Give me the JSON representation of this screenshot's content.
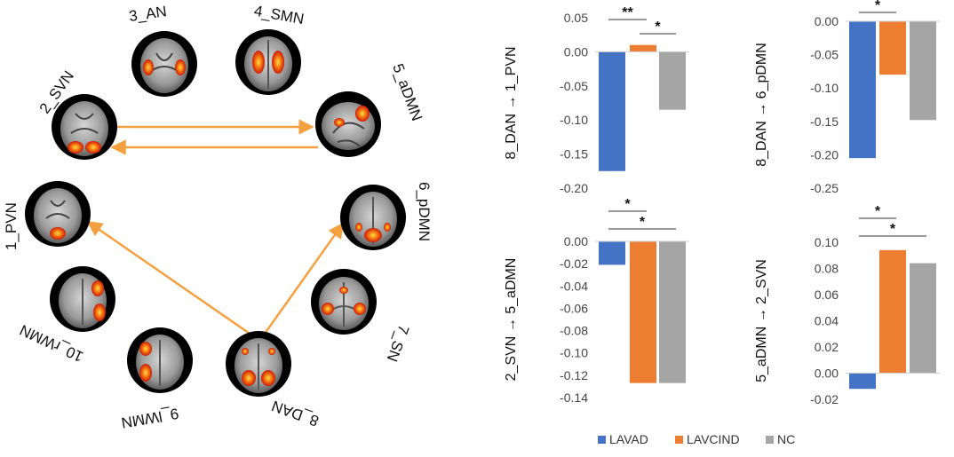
{
  "colors": {
    "LAVAD": "#4472c4",
    "LAVCIND": "#ed7d31",
    "NC": "#a5a5a5",
    "arrow": "#f4a040",
    "activation": "#e8340f"
  },
  "networks": [
    {
      "id": "1_PVN",
      "label": "1_PVN"
    },
    {
      "id": "2_SVN",
      "label": "2_SVN"
    },
    {
      "id": "3_AN",
      "label": "3_AN"
    },
    {
      "id": "4_SMN",
      "label": "4_SMN"
    },
    {
      "id": "5_aDMN",
      "label": "5_aDMN"
    },
    {
      "id": "6_pDMN",
      "label": "6_pDMN"
    },
    {
      "id": "7_SN",
      "label": "7_SN"
    },
    {
      "id": "8_DAN",
      "label": "8_DAN"
    },
    {
      "id": "9_lWMN",
      "label": "9_lWMN"
    },
    {
      "id": "10_rWMN",
      "label": "10_rWMN"
    }
  ],
  "connections": [
    {
      "from": "2_SVN",
      "to": "5_aDMN"
    },
    {
      "from": "5_aDMN",
      "to": "2_SVN"
    },
    {
      "from": "8_DAN",
      "to": "1_PVN"
    },
    {
      "from": "8_DAN",
      "to": "6_pDMN"
    }
  ],
  "legend": [
    "LAVAD",
    "LAVCIND",
    "NC"
  ],
  "chart_data": [
    {
      "type": "bar",
      "ylabel": "8_DAN → 1_PVN",
      "categories": [
        "LAVAD",
        "LAVCIND",
        "NC"
      ],
      "values": [
        -0.175,
        0.01,
        -0.085
      ],
      "ylim": [
        -0.2,
        0.05
      ],
      "ticks": [
        "0.05",
        "0.00",
        "-0.05",
        "-0.10",
        "-0.15",
        "-0.20"
      ],
      "tick_values": [
        0.05,
        0.0,
        -0.05,
        -0.1,
        -0.15,
        -0.2
      ],
      "significance": [
        {
          "pair": [
            "LAVAD",
            "LAVCIND"
          ],
          "label": "**"
        },
        {
          "pair": [
            "LAVCIND",
            "NC"
          ],
          "label": "*"
        }
      ]
    },
    {
      "type": "bar",
      "ylabel": "8_DAN → 6_pDMN",
      "categories": [
        "LAVAD",
        "LAVCIND",
        "NC"
      ],
      "values": [
        -0.205,
        -0.08,
        -0.148
      ],
      "ylim": [
        -0.25,
        0.0
      ],
      "ticks": [
        "0.00",
        "-0.05",
        "-0.10",
        "-0.15",
        "-0.20",
        "-0.25"
      ],
      "tick_values": [
        0.0,
        -0.05,
        -0.1,
        -0.15,
        -0.2,
        -0.25
      ],
      "significance": [
        {
          "pair": [
            "LAVAD",
            "LAVCIND"
          ],
          "label": "*"
        }
      ]
    },
    {
      "type": "bar",
      "ylabel": "2_SVN → 5_aDMN",
      "categories": [
        "LAVAD",
        "LAVCIND",
        "NC"
      ],
      "values": [
        -0.021,
        -0.127,
        -0.127
      ],
      "ylim": [
        -0.14,
        0.0
      ],
      "ticks": [
        "0.00",
        "-0.02",
        "-0.04",
        "-0.06",
        "-0.08",
        "-0.10",
        "-0.12",
        "-0.14"
      ],
      "tick_values": [
        0.0,
        -0.02,
        -0.04,
        -0.06,
        -0.08,
        -0.1,
        -0.12,
        -0.14
      ],
      "significance": [
        {
          "pair": [
            "LAVAD",
            "LAVCIND"
          ],
          "label": "*"
        },
        {
          "pair": [
            "LAVAD",
            "NC"
          ],
          "label": "*"
        }
      ]
    },
    {
      "type": "bar",
      "ylabel": "5_aDMN → 2_SVN",
      "categories": [
        "LAVAD",
        "LAVCIND",
        "NC"
      ],
      "values": [
        -0.012,
        0.094,
        0.084
      ],
      "ylim": [
        -0.02,
        0.1
      ],
      "ticks": [
        "0.10",
        "0.08",
        "0.06",
        "0.04",
        "0.02",
        "0.00",
        "-0.02"
      ],
      "tick_values": [
        0.1,
        0.08,
        0.06,
        0.04,
        0.02,
        0.0,
        -0.02
      ],
      "significance": [
        {
          "pair": [
            "LAVAD",
            "LAVCIND"
          ],
          "label": "*"
        },
        {
          "pair": [
            "LAVAD",
            "NC"
          ],
          "label": "*"
        }
      ]
    }
  ]
}
